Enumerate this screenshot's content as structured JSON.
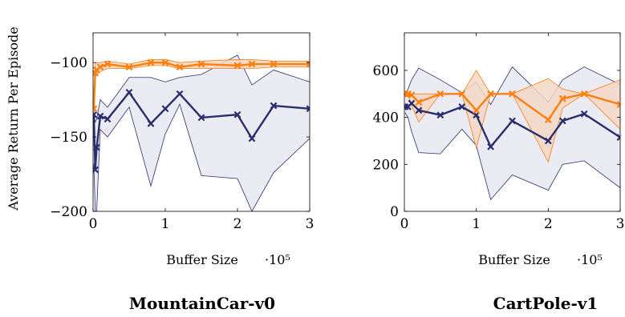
{
  "colors": {
    "blue": "#2a2d6e",
    "orange": "#ff7f0e",
    "band_blue": "#e6e7f1",
    "band_orange": "#f3d8c6"
  },
  "ylabel": "Average Return Per Episode",
  "chart_data": [
    {
      "type": "line",
      "title": "MountainCar-v0",
      "xlabel": "Buffer Size",
      "x_multiplier": "·10⁵",
      "xlim": [
        0,
        3
      ],
      "ylim": [
        -200,
        -80
      ],
      "xticks": [
        0,
        1,
        2,
        3
      ],
      "xtick_labels": [
        "0",
        "1",
        "2",
        "3"
      ],
      "yticks": [
        -100,
        -150,
        -200
      ],
      "ytick_labels": [
        "−100",
        "−150",
        "−200"
      ],
      "grid": false,
      "series": [
        {
          "color": "blue",
          "marker": "x",
          "x": [
            0.01,
            0.03,
            0.05,
            0.1,
            0.2,
            0.5,
            0.8,
            1.0,
            1.2,
            1.5,
            2.0,
            2.2,
            2.5,
            3.0
          ],
          "values": [
            -135,
            -172,
            -157,
            -136,
            -138,
            -120,
            -141,
            -131,
            -121,
            -137,
            -135,
            -151,
            -129,
            -131
          ],
          "band_upper": [
            -133,
            -140,
            -138,
            -125,
            -130,
            -110,
            -110,
            -113,
            -110,
            -108,
            -95,
            -115,
            -105,
            -113
          ],
          "band_lower": [
            -168,
            -200,
            -200,
            -145,
            -150,
            -130,
            -183,
            -148,
            -128,
            -176,
            -178,
            -200,
            -174,
            -151
          ]
        },
        {
          "color": "orange",
          "marker": "x",
          "x": [
            0.01,
            0.03,
            0.05,
            0.1,
            0.2,
            0.5,
            0.8,
            1.0,
            1.2,
            1.5,
            2.0,
            2.2,
            2.5,
            3.0
          ],
          "values": [
            -131,
            -107,
            -105,
            -103,
            -101,
            -103,
            -100,
            -100,
            -103,
            -101,
            -102,
            -101,
            -101,
            -101
          ],
          "band_upper": [
            -120,
            -101,
            -100,
            -100,
            -99,
            -101,
            -98,
            -98,
            -100,
            -99,
            -98,
            -98,
            -99,
            -99
          ],
          "band_lower": [
            -140,
            -110,
            -108,
            -106,
            -104,
            -104,
            -102,
            -102,
            -104,
            -104,
            -104,
            -104,
            -103,
            -103
          ]
        }
      ]
    },
    {
      "type": "line",
      "title": "CartPole-v1",
      "xlabel": "Buffer Size",
      "x_multiplier": "·10⁵",
      "xlim": [
        0,
        3
      ],
      "ylim": [
        0,
        760
      ],
      "xticks": [
        0,
        1,
        2,
        3
      ],
      "xtick_labels": [
        "0",
        "1",
        "2",
        "3"
      ],
      "yticks": [
        0,
        200,
        400,
        600
      ],
      "ytick_labels": [
        "0",
        "200",
        "400",
        "600"
      ],
      "grid": false,
      "series": [
        {
          "color": "blue",
          "marker": "x",
          "x": [
            0.01,
            0.05,
            0.1,
            0.2,
            0.5,
            0.8,
            1.0,
            1.2,
            1.5,
            2.0,
            2.2,
            2.5,
            3.0
          ],
          "values": [
            445,
            445,
            460,
            430,
            410,
            445,
            410,
            275,
            385,
            300,
            385,
            415,
            315
          ],
          "band_upper": [
            500,
            520,
            560,
            610,
            560,
            505,
            550,
            455,
            615,
            465,
            560,
            615,
            540
          ],
          "band_lower": [
            420,
            400,
            340,
            250,
            245,
            350,
            280,
            50,
            155,
            90,
            200,
            215,
            100
          ]
        },
        {
          "color": "orange",
          "marker": "x",
          "x": [
            0.01,
            0.05,
            0.1,
            0.2,
            0.5,
            0.8,
            1.0,
            1.2,
            1.5,
            2.0,
            2.2,
            2.5,
            3.0
          ],
          "values": [
            500,
            500,
            495,
            465,
            500,
            500,
            430,
            500,
            500,
            390,
            480,
            500,
            455
          ],
          "band_upper": [
            500,
            500,
            500,
            500,
            500,
            500,
            600,
            500,
            500,
            565,
            520,
            500,
            560
          ],
          "band_lower": [
            500,
            500,
            450,
            380,
            500,
            500,
            270,
            500,
            500,
            210,
            440,
            500,
            350
          ]
        }
      ]
    }
  ]
}
